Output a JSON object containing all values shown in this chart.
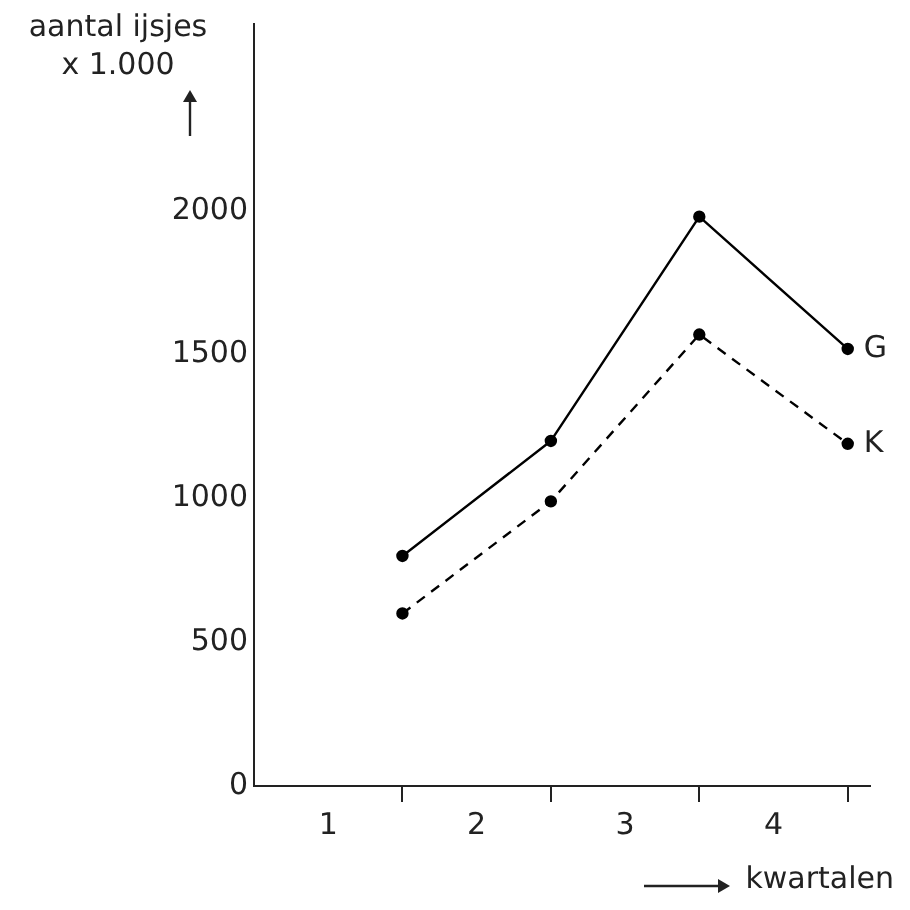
{
  "chart_data": {
    "type": "line",
    "ylabel": "aantal ijsjes\nx 1.000",
    "xlabel": "kwartalen",
    "x": [
      1,
      2,
      3,
      4
    ],
    "xlim": [
      0,
      4.15
    ],
    "xticks": [
      {
        "value": 0.5,
        "label": "1"
      },
      {
        "value": 1,
        "label": null
      },
      {
        "value": 1.5,
        "label": "2"
      },
      {
        "value": 2,
        "label": null
      },
      {
        "value": 2.5,
        "label": "3"
      },
      {
        "value": 3,
        "label": null
      },
      {
        "value": 3.5,
        "label": "4"
      },
      {
        "value": 4,
        "label": null
      }
    ],
    "ylim": [
      0,
      2650
    ],
    "yticks": [
      0,
      500,
      1000,
      1500,
      2000
    ],
    "grid": false,
    "legend": false,
    "marker": "circle",
    "series": [
      {
        "name": "G",
        "color": "#000000",
        "line_style": "solid",
        "values": [
          800,
          1200,
          1980,
          1520
        ]
      },
      {
        "name": "K",
        "color": "#000000",
        "line_style": "dashed",
        "values": [
          600,
          990,
          1570,
          1190
        ]
      }
    ]
  }
}
